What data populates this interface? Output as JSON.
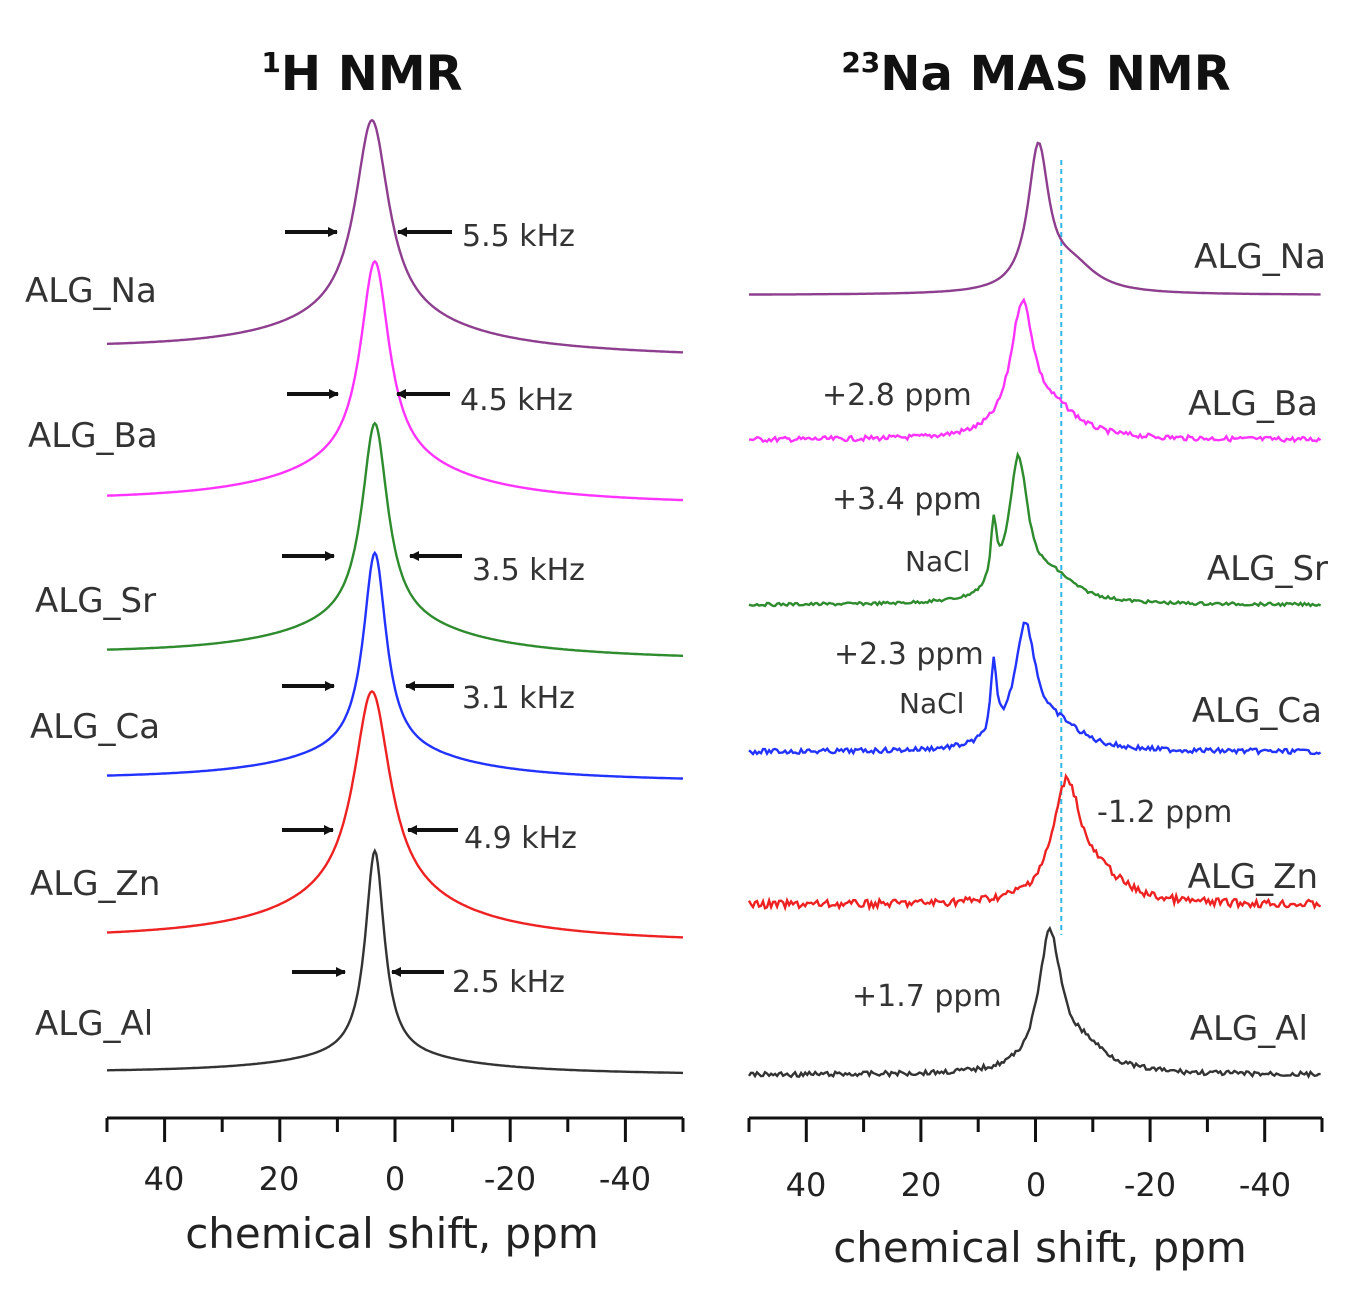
{
  "chart_data": [
    {
      "type": "line",
      "title_super": "1",
      "title_main": "H NMR",
      "xlabel": "chemical shift, ppm",
      "xlim": [
        50,
        -50
      ],
      "xticks": [
        40,
        20,
        0,
        -20,
        -40
      ],
      "xtick_labels": [
        "40",
        "20",
        "0",
        "-20",
        "-40"
      ],
      "series": [
        {
          "name": "ALG_Na",
          "color": "#8E3E8E",
          "peak_ppm": 4,
          "fwhm_annotation": "5.5 kHz"
        },
        {
          "name": "ALG_Ba",
          "color": "#FF33FF",
          "peak_ppm": 3.5,
          "fwhm_annotation": "4.5 kHz"
        },
        {
          "name": "ALG_Sr",
          "color": "#2E8B2E",
          "peak_ppm": 3.5,
          "fwhm_annotation": "3.5 kHz"
        },
        {
          "name": "ALG_Ca",
          "color": "#2233FF",
          "peak_ppm": 3.5,
          "fwhm_annotation": "3.1 kHz"
        },
        {
          "name": "ALG_Zn",
          "color": "#EE2222",
          "peak_ppm": 4,
          "fwhm_annotation": "4.9 kHz"
        },
        {
          "name": "ALG_Al",
          "color": "#333333",
          "peak_ppm": 3.5,
          "fwhm_annotation": "2.5 kHz"
        }
      ]
    },
    {
      "type": "line",
      "title_super": "23",
      "title_main": "Na MAS NMR",
      "xlabel": "chemical shift, ppm",
      "xlim": [
        50,
        -50
      ],
      "xticks": [
        40,
        20,
        0,
        -20,
        -40
      ],
      "xtick_labels": [
        "40",
        "20",
        "0",
        "-20",
        "-40"
      ],
      "reference_line_ppm": -4.5,
      "series": [
        {
          "name": "ALG_Na",
          "color": "#8E3E8E",
          "peak_ppm": -0.5,
          "shift_annotation": ""
        },
        {
          "name": "ALG_Ba",
          "color": "#FF33FF",
          "peak_ppm": 2.3,
          "shift_annotation": "+2.8 ppm"
        },
        {
          "name": "ALG_Sr",
          "color": "#2E8B2E",
          "peak_ppm": 3.0,
          "shift_annotation": "+3.4 ppm",
          "extra_peak_label": "NaCl",
          "extra_peak_ppm": 7.3
        },
        {
          "name": "ALG_Ca",
          "color": "#2233FF",
          "peak_ppm": 1.8,
          "shift_annotation": "+2.3 ppm",
          "extra_peak_label": "NaCl",
          "extra_peak_ppm": 7.3
        },
        {
          "name": "ALG_Zn",
          "color": "#EE2222",
          "peak_ppm": -5.5,
          "shift_annotation": "-1.2 ppm"
        },
        {
          "name": "ALG_Al",
          "color": "#333333",
          "peak_ppm": -2.5,
          "shift_annotation": "+1.7 ppm"
        }
      ]
    }
  ]
}
